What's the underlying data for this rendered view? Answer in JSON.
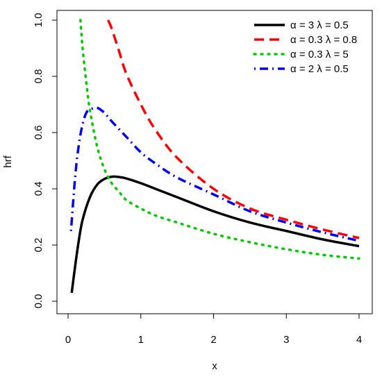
{
  "chart_data": {
    "type": "line",
    "title": "",
    "xlabel": "x",
    "ylabel": "hrf",
    "xlim": [
      0,
      4
    ],
    "ylim": [
      0,
      1.0
    ],
    "grid": false,
    "legend_position": "top-right",
    "x_ticks": [
      "0",
      "1",
      "2",
      "3",
      "4"
    ],
    "y_ticks": [
      "0.0",
      "0.2",
      "0.4",
      "0.6",
      "0.8",
      "1.0"
    ],
    "series": [
      {
        "name": "α = 3  λ = 0.5",
        "color": "#000000",
        "dash": "solid",
        "x": [
          0.05,
          0.1,
          0.15,
          0.2,
          0.3,
          0.4,
          0.5,
          0.6,
          0.7,
          0.8,
          1.0,
          1.2,
          1.5,
          2.0,
          2.5,
          3.0,
          3.5,
          4.0
        ],
        "y": [
          0.03,
          0.13,
          0.22,
          0.29,
          0.37,
          0.415,
          0.435,
          0.443,
          0.442,
          0.437,
          0.42,
          0.4,
          0.37,
          0.32,
          0.28,
          0.25,
          0.22,
          0.196
        ]
      },
      {
        "name": "α = 0.3  λ = 0.8",
        "color": "#ff0000",
        "dash": "dashed",
        "x": [
          0.55,
          0.6,
          0.7,
          0.8,
          1.0,
          1.2,
          1.5,
          2.0,
          2.5,
          3.0,
          3.5,
          4.0
        ],
        "y": [
          1.0,
          0.97,
          0.89,
          0.81,
          0.7,
          0.61,
          0.51,
          0.4,
          0.33,
          0.29,
          0.255,
          0.225
        ]
      },
      {
        "name": "α = 0.3  λ = 5",
        "color": "#00cd00",
        "dash": "dotted",
        "x": [
          0.17,
          0.2,
          0.25,
          0.3,
          0.4,
          0.5,
          0.6,
          0.7,
          0.8,
          1.0,
          1.2,
          1.5,
          2.0,
          2.5,
          3.0,
          3.5,
          4.0
        ],
        "y": [
          1.0,
          0.9,
          0.78,
          0.68,
          0.55,
          0.47,
          0.42,
          0.39,
          0.36,
          0.33,
          0.305,
          0.28,
          0.24,
          0.21,
          0.185,
          0.165,
          0.152
        ]
      },
      {
        "name": "α = 2  λ = 0.5",
        "color": "#0000ff",
        "dash": "dashdot",
        "x": [
          0.04,
          0.1,
          0.15,
          0.2,
          0.25,
          0.3,
          0.4,
          0.5,
          0.6,
          0.8,
          1.0,
          1.2,
          1.5,
          2.0,
          2.5,
          3.0,
          3.5,
          4.0
        ],
        "y": [
          0.25,
          0.45,
          0.56,
          0.63,
          0.67,
          0.682,
          0.688,
          0.67,
          0.64,
          0.585,
          0.53,
          0.49,
          0.44,
          0.38,
          0.32,
          0.28,
          0.245,
          0.215
        ]
      }
    ]
  }
}
